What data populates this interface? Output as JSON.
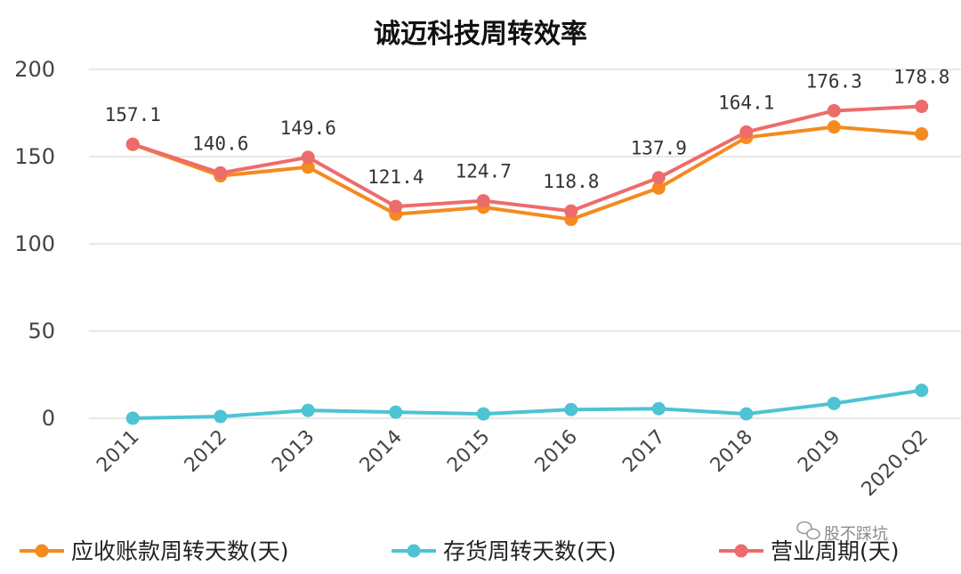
{
  "chart_data": {
    "type": "line",
    "title": "诚迈科技周转效率",
    "categories": [
      "2011",
      "2012",
      "2013",
      "2014",
      "2015",
      "2016",
      "2017",
      "2018",
      "2019",
      "2020.Q2"
    ],
    "ylim": [
      0,
      200
    ],
    "yticks": [
      "0",
      "50",
      "100",
      "150",
      "200"
    ],
    "grid": true,
    "legend_position": "bottom",
    "series": [
      {
        "name": "应收账款周转天数(天)",
        "color": "#F58A1F",
        "values": [
          157,
          139,
          144,
          117,
          121,
          114,
          132,
          161,
          167,
          163
        ]
      },
      {
        "name": "存货周转天数(天)",
        "color": "#4DC3D3",
        "values": [
          0,
          1,
          4.5,
          3.5,
          2.5,
          5,
          5.5,
          2.5,
          8.5,
          16
        ]
      },
      {
        "name": "营业周期(天)",
        "color": "#EE6B6B",
        "values": [
          157.1,
          140.6,
          149.6,
          121.4,
          124.7,
          118.8,
          137.9,
          164.1,
          176.3,
          178.8
        ],
        "data_labels": [
          "157.1",
          "140.6",
          "149.6",
          "121.4",
          "124.7",
          "118.8",
          "137.9",
          "164.1",
          "176.3",
          "178.8"
        ]
      }
    ]
  },
  "watermark": {
    "text": "股不踩坑"
  }
}
